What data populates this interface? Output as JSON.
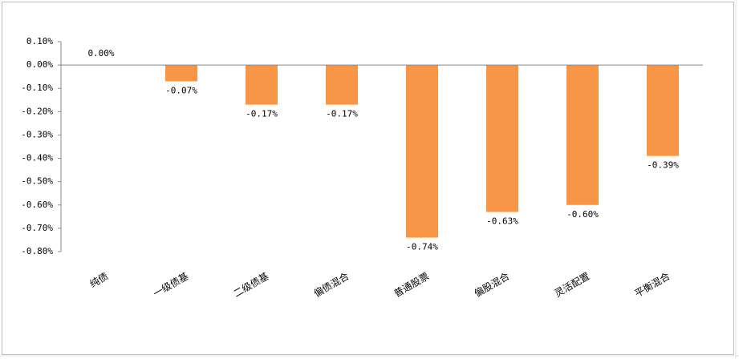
{
  "chart_data": {
    "type": "bar",
    "categories": [
      "纯债",
      "一级债基",
      "二级债基",
      "偏债混合",
      "普通股票",
      "偏股混合",
      "灵活配置",
      "平衡混合"
    ],
    "values": [
      0.0,
      -0.07,
      -0.17,
      -0.17,
      -0.74,
      -0.63,
      -0.6,
      -0.39
    ],
    "value_labels": [
      "0.00%",
      "-0.07%",
      "-0.17%",
      "-0.17%",
      "-0.74%",
      "-0.63%",
      "-0.60%",
      "-0.39%"
    ],
    "color": "#f79646",
    "ylim": [
      -0.8,
      0.1
    ],
    "yticks": [
      {
        "value": 0.1,
        "label": "0.10%"
      },
      {
        "value": 0,
        "label": "0.00%"
      },
      {
        "value": -0.1,
        "label": "-0.10%"
      },
      {
        "value": -0.2,
        "label": "-0.20%"
      },
      {
        "value": -0.3,
        "label": "-0.30%"
      },
      {
        "value": -0.4,
        "label": "-0.40%"
      },
      {
        "value": -0.5,
        "label": "-0.50%"
      },
      {
        "value": -0.6,
        "label": "-0.60%"
      },
      {
        "value": -0.7,
        "label": "-0.70%"
      },
      {
        "value": -0.8,
        "label": "-0.80%"
      }
    ],
    "grid": false
  }
}
